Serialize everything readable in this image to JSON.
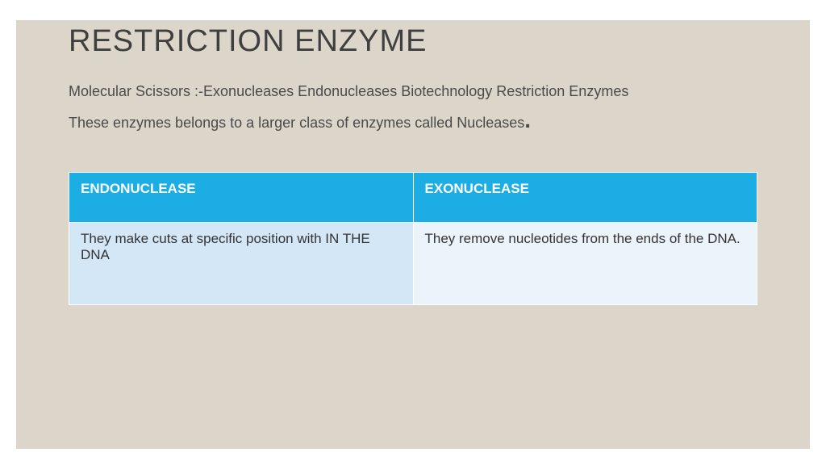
{
  "colors": {
    "page_bg": "#ffffff",
    "slide_bg": "#dbd6c9",
    "title_color": "#3f3f3f",
    "text_color": "#4a4a4a",
    "header_bg": "#1cade4",
    "header_text": "#ffffff",
    "cell1_bg": "#d4e7f7",
    "cell2_bg": "#ebf3fb",
    "cell_text": "#333333"
  },
  "title": "RESTRICTION ENZYME",
  "para1": "Molecular Scissors :-Exonucleases Endonucleases Biotechnology Restriction Enzymes",
  "para2": "These enzymes belongs to a larger class of enzymes called Nucleases",
  "table": {
    "headers": [
      "ENDONUCLEASE",
      "EXONUCLEASE"
    ],
    "rows": [
      [
        "They make cuts at specific position with IN THE DNA",
        "They remove nucleotides from the ends of the DNA."
      ]
    ]
  }
}
